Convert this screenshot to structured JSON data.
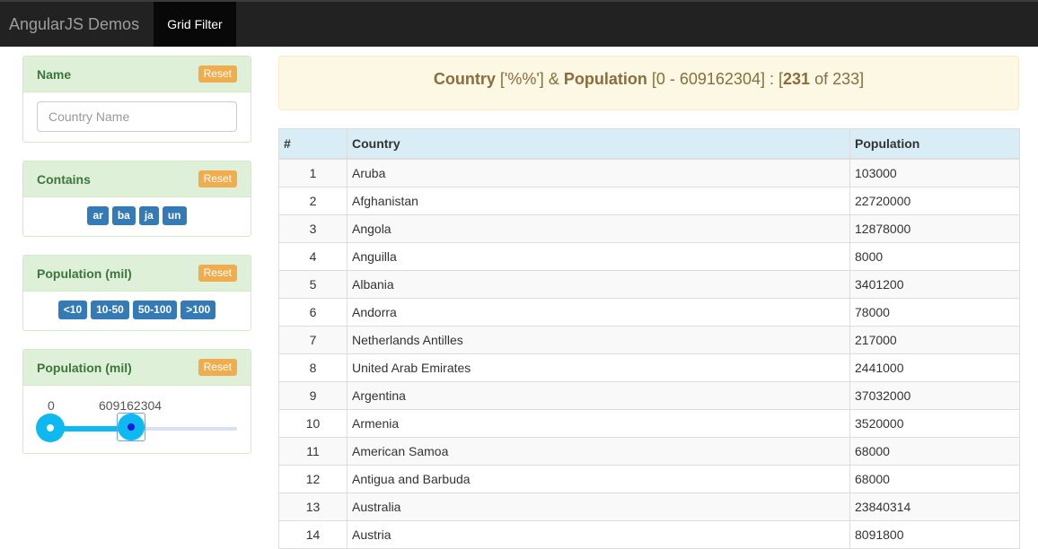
{
  "navbar": {
    "brand": "AngularJS Demos",
    "active_tab": "Grid Filter"
  },
  "sidebar": {
    "name_panel": {
      "title": "Name",
      "reset_label": "Reset",
      "input_placeholder": "Country Name",
      "input_value": ""
    },
    "contains_panel": {
      "title": "Contains",
      "reset_label": "Reset",
      "buttons": [
        "ar",
        "ba",
        "ja",
        "un"
      ]
    },
    "population_buttons_panel": {
      "title": "Population (mil)",
      "reset_label": "Reset",
      "buttons": [
        "<10",
        "10-50",
        "50-100",
        ">100"
      ]
    },
    "population_slider_panel": {
      "title": "Population (mil)",
      "reset_label": "Reset",
      "min_label": "0",
      "max_label": "609162304",
      "min_fraction": 0.0,
      "max_fraction": 0.4
    }
  },
  "summary": {
    "country_label": "Country",
    "country_filter": "['%%']",
    "amp": "&",
    "population_label": "Population",
    "population_range": "[0 - 609162304] :",
    "bracket_open": "[",
    "shown": "231",
    "of_text": "of 233]"
  },
  "table": {
    "headers": [
      "#",
      "Country",
      "Population"
    ],
    "rows": [
      [
        "1",
        "Aruba",
        "103000"
      ],
      [
        "2",
        "Afghanistan",
        "22720000"
      ],
      [
        "3",
        "Angola",
        "12878000"
      ],
      [
        "4",
        "Anguilla",
        "8000"
      ],
      [
        "5",
        "Albania",
        "3401200"
      ],
      [
        "6",
        "Andorra",
        "78000"
      ],
      [
        "7",
        "Netherlands Antilles",
        "217000"
      ],
      [
        "8",
        "United Arab Emirates",
        "2441000"
      ],
      [
        "9",
        "Argentina",
        "37032000"
      ],
      [
        "10",
        "Armenia",
        "3520000"
      ],
      [
        "11",
        "American Samoa",
        "68000"
      ],
      [
        "12",
        "Antigua and Barbuda",
        "68000"
      ],
      [
        "13",
        "Australia",
        "23840314"
      ],
      [
        "14",
        "Austria",
        "8091800"
      ]
    ]
  },
  "colors": {
    "navbar_bg": "#222222",
    "panel_heading_bg": "#dff0d8",
    "reset_button": "#f0ad4e",
    "filter_chip": "#337ab7",
    "slider_accent": "#0db9f0",
    "alert_bg": "#fcf8e3",
    "table_header_bg": "#d9edf7"
  }
}
